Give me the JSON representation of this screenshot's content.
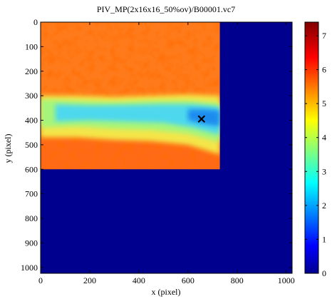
{
  "chart_data": {
    "type": "heatmap",
    "title": "PIV_MP(2x16x16_50%ov)/B00001.vc7",
    "xlabel": "x (pixel)",
    "ylabel": "y (pixel)",
    "xlim": [
      0,
      1024
    ],
    "ylim": [
      1024,
      0
    ],
    "x_ticks": [
      0,
      200,
      400,
      600,
      800,
      1000
    ],
    "y_ticks": [
      0,
      100,
      200,
      300,
      400,
      500,
      600,
      700,
      800,
      900,
      1000
    ],
    "colorbar": {
      "ticks": [
        0,
        1,
        2,
        3,
        4,
        5,
        6,
        7
      ],
      "range": [
        0,
        7.4
      ],
      "colormap": "jet"
    },
    "background_value": 0,
    "field_region": {
      "x": [
        0,
        730
      ],
      "y": [
        0,
        600
      ]
    },
    "regions": [
      {
        "description": "upper field",
        "y": [
          0,
          300
        ],
        "value": 5.5
      },
      {
        "description": "jet band center",
        "y_center": [
          330,
          390
        ],
        "value": 3.2
      },
      {
        "description": "lower field",
        "y": [
          460,
          600
        ],
        "value": 5.6
      }
    ],
    "marker": {
      "symbol": "x",
      "x": 655,
      "y": 395,
      "color": "#000000"
    }
  }
}
